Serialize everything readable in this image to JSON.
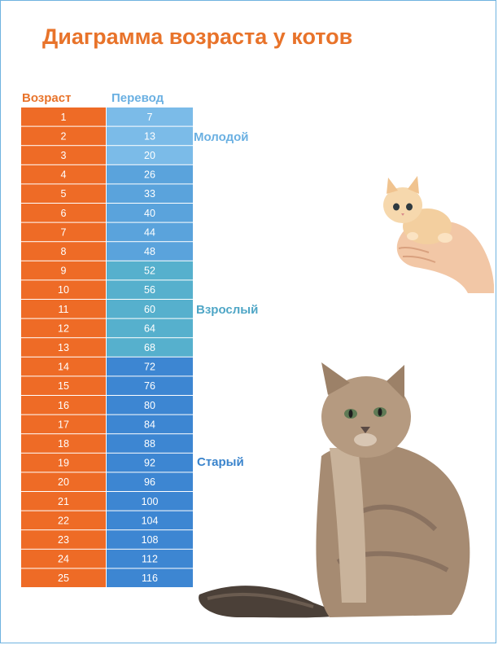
{
  "title": "Диаграмма возраста у котов",
  "headers": {
    "age": "Возраст",
    "human": "Перевод"
  },
  "stages": {
    "young": "Молодой",
    "adult": "Взрослый",
    "old": "Старый"
  },
  "colors": {
    "orange": "#ee6b26",
    "young": "#7bbbe8",
    "young_mid": "#5aa3dc",
    "adult": "#56b0cd",
    "old": "#3d86d2",
    "title": "#e8732a"
  },
  "images": [
    "kitten-in-hand",
    "sitting-cat"
  ],
  "chart_data": {
    "type": "table",
    "title": "Диаграмма возраста у котов",
    "columns": [
      "Возраст",
      "Перевод"
    ],
    "rows": [
      {
        "age": "1",
        "human": "7",
        "stage": "young"
      },
      {
        "age": "2",
        "human": "13",
        "stage": "young"
      },
      {
        "age": "3",
        "human": "20",
        "stage": "young"
      },
      {
        "age": "4",
        "human": "26",
        "stage": "young_mid"
      },
      {
        "age": "5",
        "human": "33",
        "stage": "young_mid"
      },
      {
        "age": "6",
        "human": "40",
        "stage": "young_mid"
      },
      {
        "age": "7",
        "human": "44",
        "stage": "young_mid"
      },
      {
        "age": "8",
        "human": "48",
        "stage": "young_mid"
      },
      {
        "age": "9",
        "human": "52",
        "stage": "adult"
      },
      {
        "age": "10",
        "human": "56",
        "stage": "adult"
      },
      {
        "age": "11",
        "human": "60",
        "stage": "adult"
      },
      {
        "age": "12",
        "human": "64",
        "stage": "adult"
      },
      {
        "age": "13",
        "human": "68",
        "stage": "adult"
      },
      {
        "age": "14",
        "human": "72",
        "stage": "old"
      },
      {
        "age": "15",
        "human": "76",
        "stage": "old"
      },
      {
        "age": "16",
        "human": "80",
        "stage": "old"
      },
      {
        "age": "17",
        "human": "84",
        "stage": "old"
      },
      {
        "age": "18",
        "human": "88",
        "stage": "old"
      },
      {
        "age": "19",
        "human": "92",
        "stage": "old"
      },
      {
        "age": "20",
        "human": "96",
        "stage": "old"
      },
      {
        "age": "21",
        "human": "100",
        "stage": "old"
      },
      {
        "age": "22",
        "human": "104",
        "stage": "old"
      },
      {
        "age": "23",
        "human": "108",
        "stage": "old"
      },
      {
        "age": "24",
        "human": "112",
        "stage": "old"
      },
      {
        "age": "25",
        "human": "116",
        "stage": "old"
      }
    ]
  }
}
